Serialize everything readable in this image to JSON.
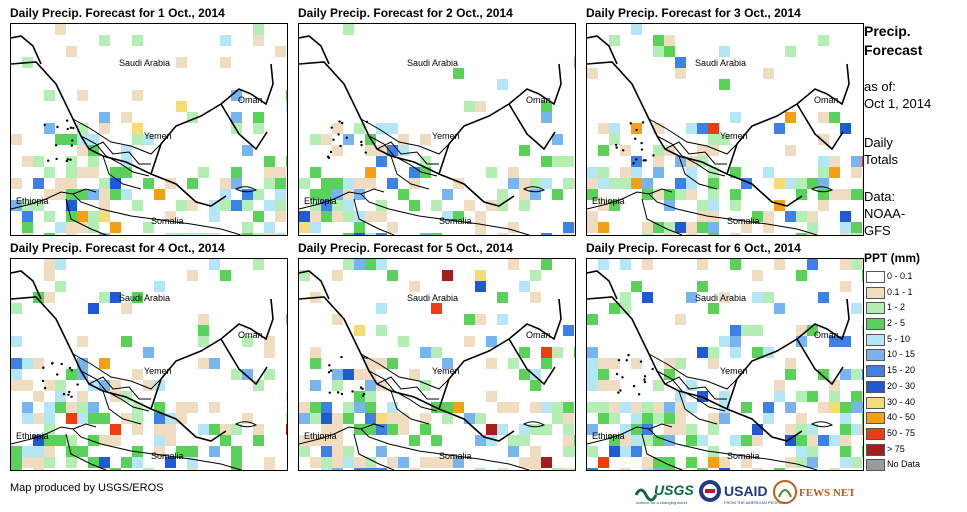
{
  "panels": [
    {
      "title": "Daily Precip. Forecast for 1 Oct., 2014",
      "seed": 11,
      "heavy": 1
    },
    {
      "title": "Daily Precip. Forecast for 2 Oct., 2014",
      "seed": 23,
      "heavy": 0
    },
    {
      "title": "Daily Precip. Forecast for 3 Oct., 2014",
      "seed": 37,
      "heavy": 1
    },
    {
      "title": "Daily Precip. Forecast for 4 Oct., 2014",
      "seed": 41,
      "heavy": 2
    },
    {
      "title": "Daily Precip. Forecast for 5 Oct., 2014",
      "seed": 53,
      "heavy": 2
    },
    {
      "title": "Daily Precip. Forecast for 6 Oct., 2014",
      "seed": 67,
      "heavy": 3
    }
  ],
  "map_labels": {
    "saudi": "Saudi Arabia",
    "oman": "Oman",
    "yemen": "Yemen",
    "ethiopia": "Ethiopia",
    "somalia": "Somalia"
  },
  "sidebar": {
    "title_line1": "Precip.",
    "title_line2": "Forecast",
    "asof_line1": "as of:",
    "asof_line2": "Oct 1, 2014",
    "totals_line1": "Daily",
    "totals_line2": "Totals",
    "source_line1": "Data:",
    "source_line2": "NOAA-",
    "source_line3": "GFS"
  },
  "legend": {
    "title": "PPT (mm)",
    "items": [
      {
        "label": "0 - 0.1",
        "color": "#ffffff"
      },
      {
        "label": "0.1 - 1",
        "color": "#f0dcc0"
      },
      {
        "label": "1 - 2",
        "color": "#b4eeb4"
      },
      {
        "label": "2 - 5",
        "color": "#5ad25a"
      },
      {
        "label": "5 - 10",
        "color": "#b4e6f5"
      },
      {
        "label": "10 - 15",
        "color": "#78b4f0"
      },
      {
        "label": "15 - 20",
        "color": "#3c82e6"
      },
      {
        "label": "20 - 30",
        "color": "#1e5ad2"
      },
      {
        "label": "30 - 40",
        "color": "#f5dc78"
      },
      {
        "label": "40 - 50",
        "color": "#f5a014"
      },
      {
        "label": "50 - 75",
        "color": "#f03c14"
      },
      {
        "label": "> 75",
        "color": "#a01e1e"
      },
      {
        "label": "No Data",
        "color": "#9b9b9b"
      }
    ]
  },
  "footer": {
    "credit": "Map produced by USGS/EROS",
    "logo_usgs": "USGS",
    "logo_usaid": "USAID",
    "logo_fews": "FEWS NET",
    "usgs_tagline": "science for a changing world",
    "usaid_tagline": "FROM THE AMERICAN PEOPLE"
  }
}
